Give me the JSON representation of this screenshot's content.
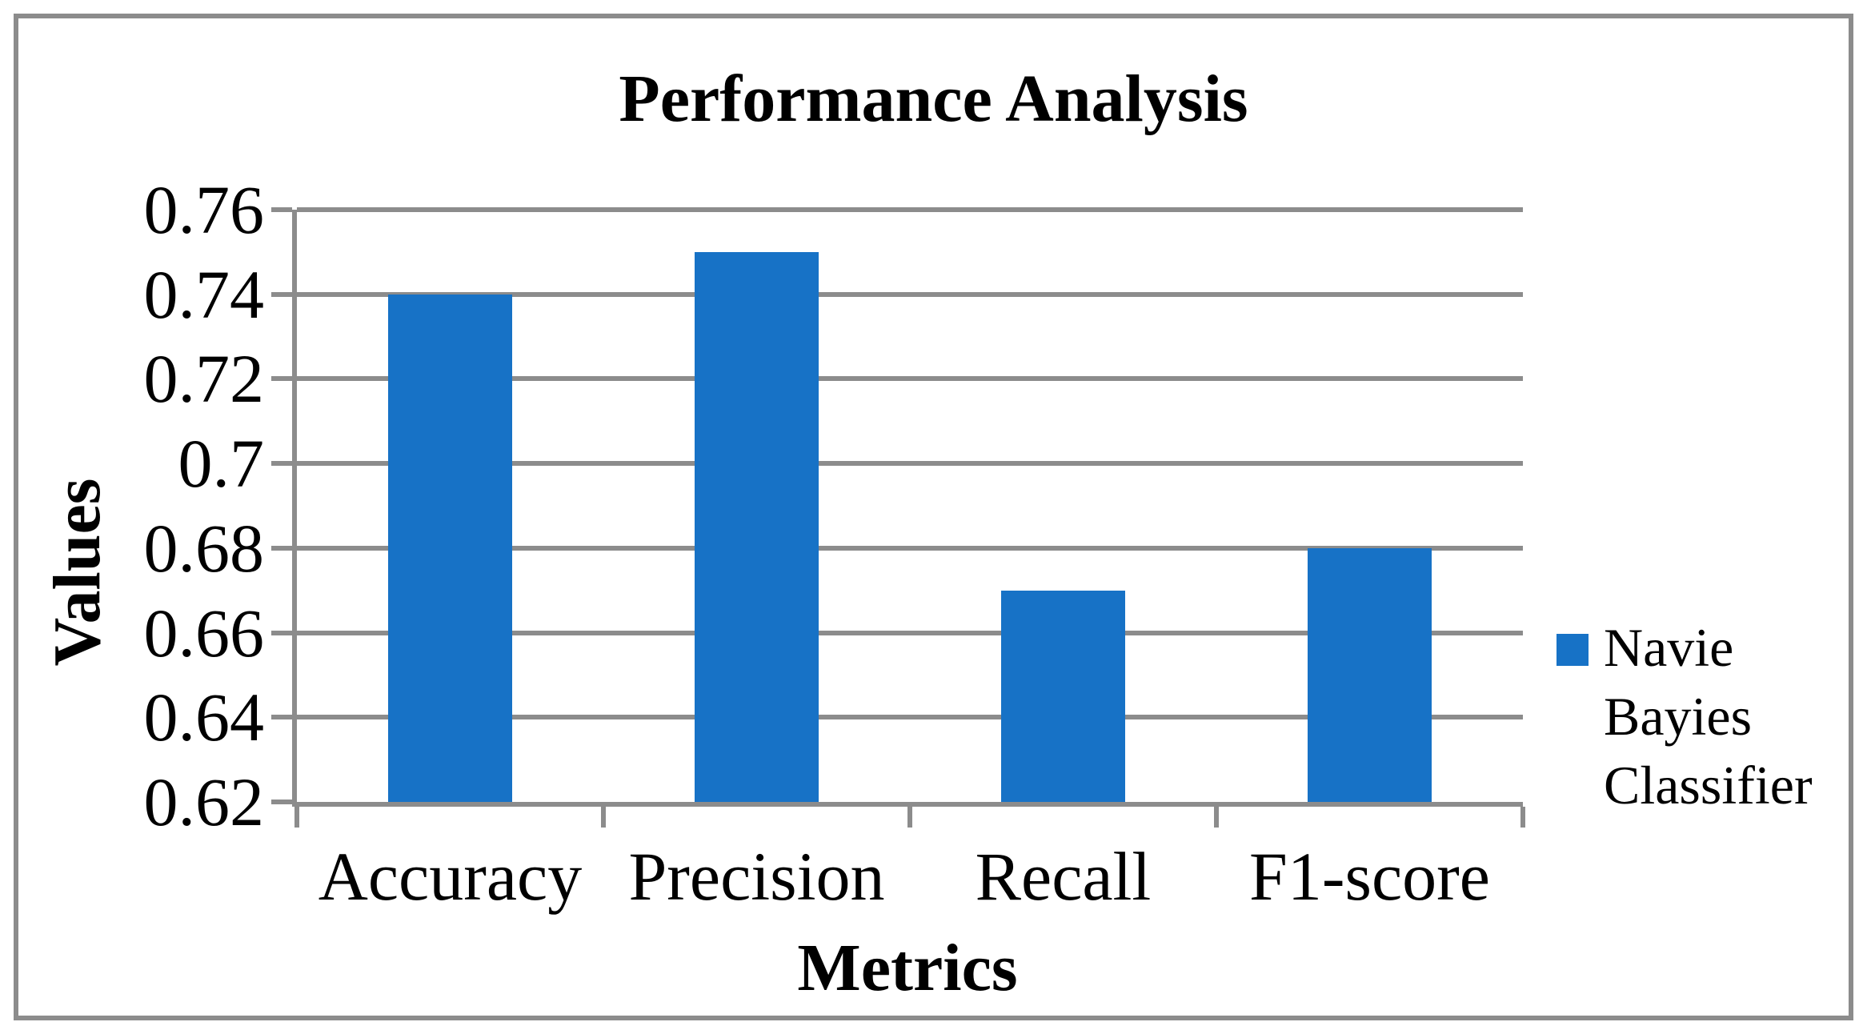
{
  "window": {
    "background": "#FFFFFF",
    "frame_color": "#8C8C8C"
  },
  "chart_data": {
    "type": "bar",
    "title": "Performance Analysis",
    "xlabel": "Metrics",
    "ylabel": "Values",
    "categories": [
      "Accuracy",
      "Precision",
      "Recall",
      "F1-score"
    ],
    "series": [
      {
        "name": "Navie Bayies Classifier",
        "values": [
          0.74,
          0.75,
          0.67,
          0.68
        ],
        "color": "#1772C6"
      }
    ],
    "ylim": [
      0.62,
      0.76
    ],
    "ytick_step": 0.02,
    "ytick_labels": [
      "0.62",
      "0.64",
      "0.66",
      "0.68",
      "0.7",
      "0.72",
      "0.74",
      "0.76"
    ],
    "grid": "horizontal-major",
    "gridline_color": "#8C8C8C",
    "axis_color": "#8C8C8C",
    "legend_position": "right",
    "bars_start_at_axis_min": true
  }
}
